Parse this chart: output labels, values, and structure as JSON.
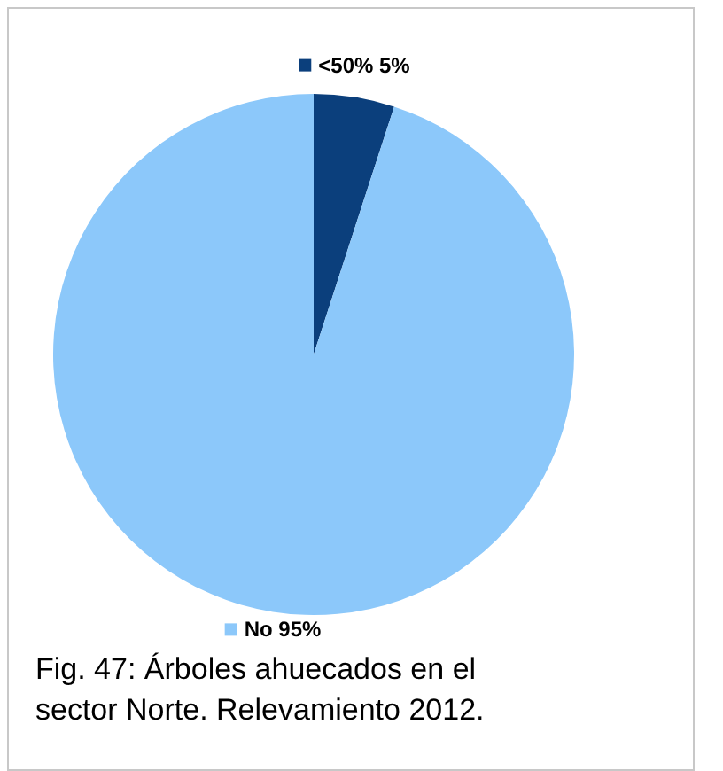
{
  "chart_data": {
    "type": "pie",
    "categories": [
      "<50%",
      "No"
    ],
    "values": [
      5,
      95
    ],
    "colors": [
      "#0b3f7c",
      "#8cc8fa"
    ],
    "value_labels": [
      "5%",
      "95%"
    ],
    "annotations": [
      "Fig. 47: Árboles ahuecados en el\nsector Norte. Relevamiento 2012."
    ],
    "legend": "top"
  }
}
